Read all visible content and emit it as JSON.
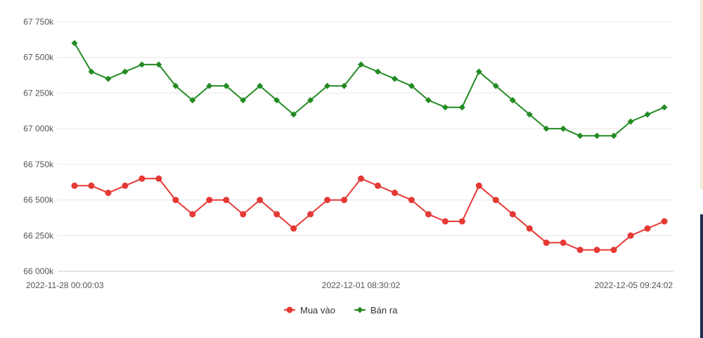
{
  "chart_data": {
    "type": "line",
    "title": "",
    "xlabel": "",
    "ylabel": "",
    "ylim": [
      66000,
      67750
    ],
    "yticks": [
      {
        "value": 66000,
        "label": "66 000k"
      },
      {
        "value": 66250,
        "label": "66 250k"
      },
      {
        "value": 66500,
        "label": "66 500k"
      },
      {
        "value": 66750,
        "label": "66 750k"
      },
      {
        "value": 67000,
        "label": "67 000k"
      },
      {
        "value": 67250,
        "label": "67 250k"
      },
      {
        "value": 67500,
        "label": "67 500k"
      },
      {
        "value": 67750,
        "label": "67 750k"
      }
    ],
    "xticks": [
      {
        "index": 0,
        "label": "2022-11-28 00:00:03"
      },
      {
        "index": 17,
        "label": "2022-12-01 08:30:02"
      },
      {
        "index": 35,
        "label": "2022-12-05 09:24:02"
      }
    ],
    "point_count": 36,
    "grid": true,
    "legend_position": "bottom-center",
    "series": [
      {
        "name": "Mua vào",
        "color": "#e53935",
        "marker": "circle",
        "values": [
          66600,
          66600,
          66550,
          66600,
          66650,
          66650,
          66500,
          66400,
          66500,
          66500,
          66400,
          66500,
          66400,
          66300,
          66400,
          66500,
          66500,
          66650,
          66600,
          66550,
          66500,
          66400,
          66350,
          66350,
          66600,
          66500,
          66400,
          66300,
          66200,
          66200,
          66150,
          66150,
          66150,
          66250,
          66300,
          66350
        ]
      },
      {
        "name": "Bán ra",
        "color": "#228b22",
        "marker": "diamond",
        "values": [
          67600,
          67400,
          67350,
          67400,
          67450,
          67450,
          67300,
          67200,
          67300,
          67300,
          67200,
          67300,
          67200,
          67100,
          67200,
          67300,
          67300,
          67450,
          67400,
          67350,
          67300,
          67200,
          67150,
          67150,
          67400,
          67300,
          67200,
          67100,
          67000,
          67000,
          66950,
          66950,
          66950,
          67050,
          67100,
          67150
        ]
      }
    ]
  }
}
